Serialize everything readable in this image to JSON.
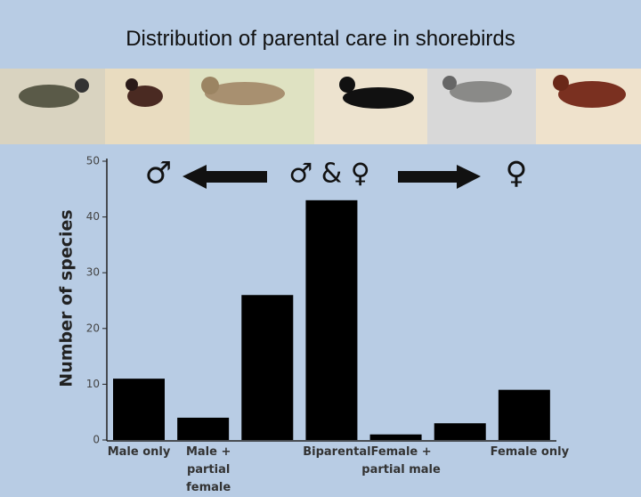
{
  "chart_data": {
    "type": "bar",
    "title": "Distribution of parental care in shorebirds",
    "y_label": "Number of species",
    "annotations": [
      "♂",
      "♂ & ♀",
      "♀"
    ],
    "categories": [
      "Male only",
      "Male + partial female",
      "",
      "Biparental",
      "Female + partial male",
      "",
      "Female only"
    ],
    "values": [
      11,
      4,
      26,
      43,
      1,
      3,
      9
    ],
    "color": "#000000",
    "ylim": [
      0,
      50
    ],
    "yticks": [
      0,
      10,
      20,
      30,
      40,
      50
    ]
  }
}
